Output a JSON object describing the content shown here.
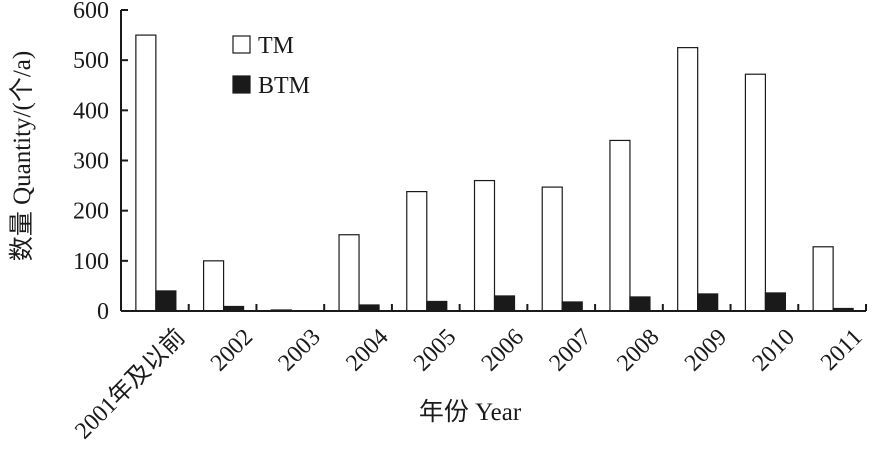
{
  "chart_data": {
    "type": "bar",
    "title": "",
    "xlabel": "年份 Year",
    "ylabel": "数量 Quantity/(个/a)",
    "categories": [
      "2001年及以前",
      "2002",
      "2003",
      "2004",
      "2005",
      "2006",
      "2007",
      "2008",
      "2009",
      "2010",
      "2011"
    ],
    "series": [
      {
        "name": "TM",
        "values": [
          550,
          100,
          2,
          152,
          238,
          260,
          247,
          340,
          525,
          472,
          128
        ],
        "color": "#ffffff",
        "stroke": "#1a1a1a"
      },
      {
        "name": "BTM",
        "values": [
          40,
          9,
          0,
          12,
          19,
          30,
          18,
          28,
          34,
          36,
          5
        ],
        "color": "#1a1a1a",
        "stroke": "#1a1a1a"
      }
    ],
    "ylim": [
      0,
      600
    ],
    "yticks": [
      0,
      100,
      200,
      300,
      400,
      500,
      600
    ],
    "grid": false,
    "legend_position": "top-left"
  }
}
